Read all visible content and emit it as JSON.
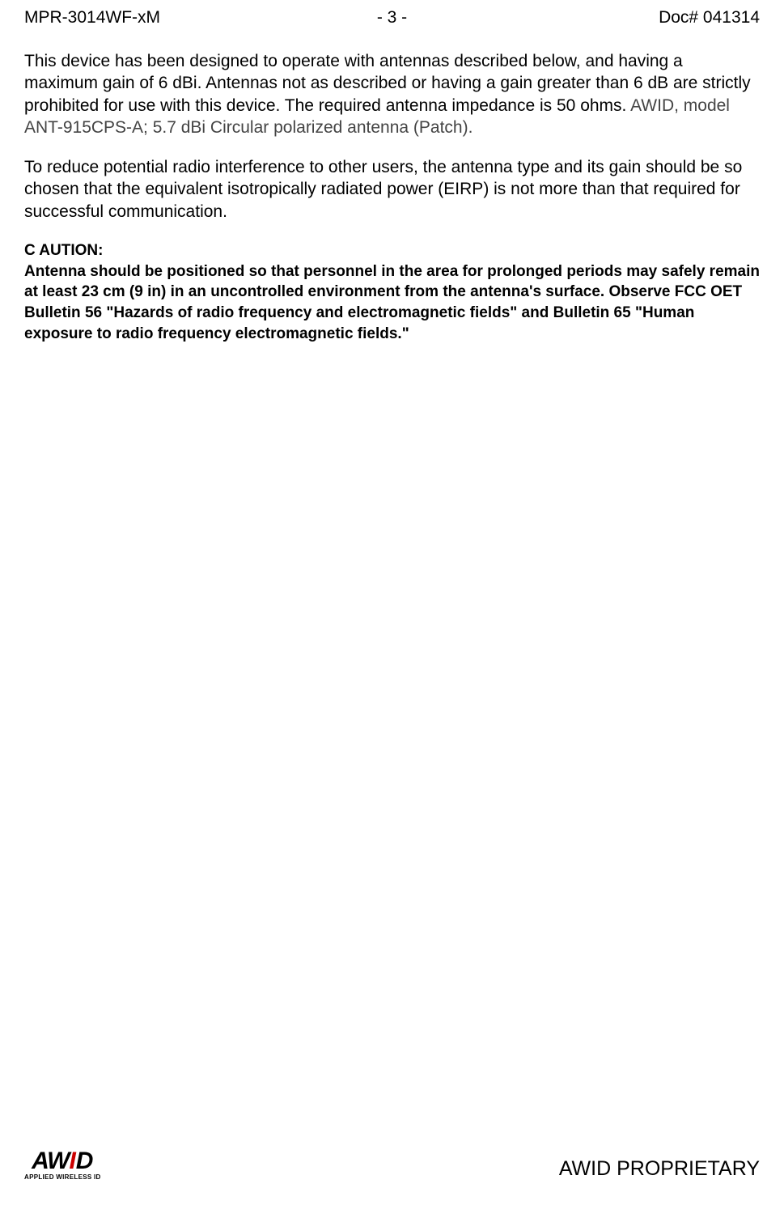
{
  "header": {
    "left": "MPR-3014WF-xM",
    "center": "- 3 -",
    "right": "Doc# 041314"
  },
  "paragraphs": {
    "p1_part1": "This device has been designed to operate with antennas described below, and having a maximum gain of 6 dBi. Antennas not as described or having a gain greater than 6 dB are strictly prohibited for use with this device. The required antenna impedance is 50 ohms. ",
    "p1_part2": "AWID, model ANT-915CPS-A;  5.7 dBi Circular polarized antenna (Patch).",
    "p2": "To reduce potential radio interference to other users, the antenna type and its gain should be so chosen that the equivalent isotropically radiated power (EIRP) is not more than that required for successful communication."
  },
  "caution": {
    "heading": "C AUTION:",
    "text": "Antenna should be positioned so that personnel in the area for prolonged periods may safely remain at least 23 cm (9 in) in an uncontrolled environment from the antenna's surface. Observe FCC OET Bulletin 56 \"Hazards of radio frequency and electromagnetic fields\" and Bulletin 65 \"Human exposure to radio frequency electromagnetic fields.\""
  },
  "footer": {
    "logo_aw": "AW",
    "logo_i": "I",
    "logo_d": "D",
    "logo_subtitle": "APPLIED WIRELESS ID",
    "right": "AWID PROPRIETARY"
  }
}
